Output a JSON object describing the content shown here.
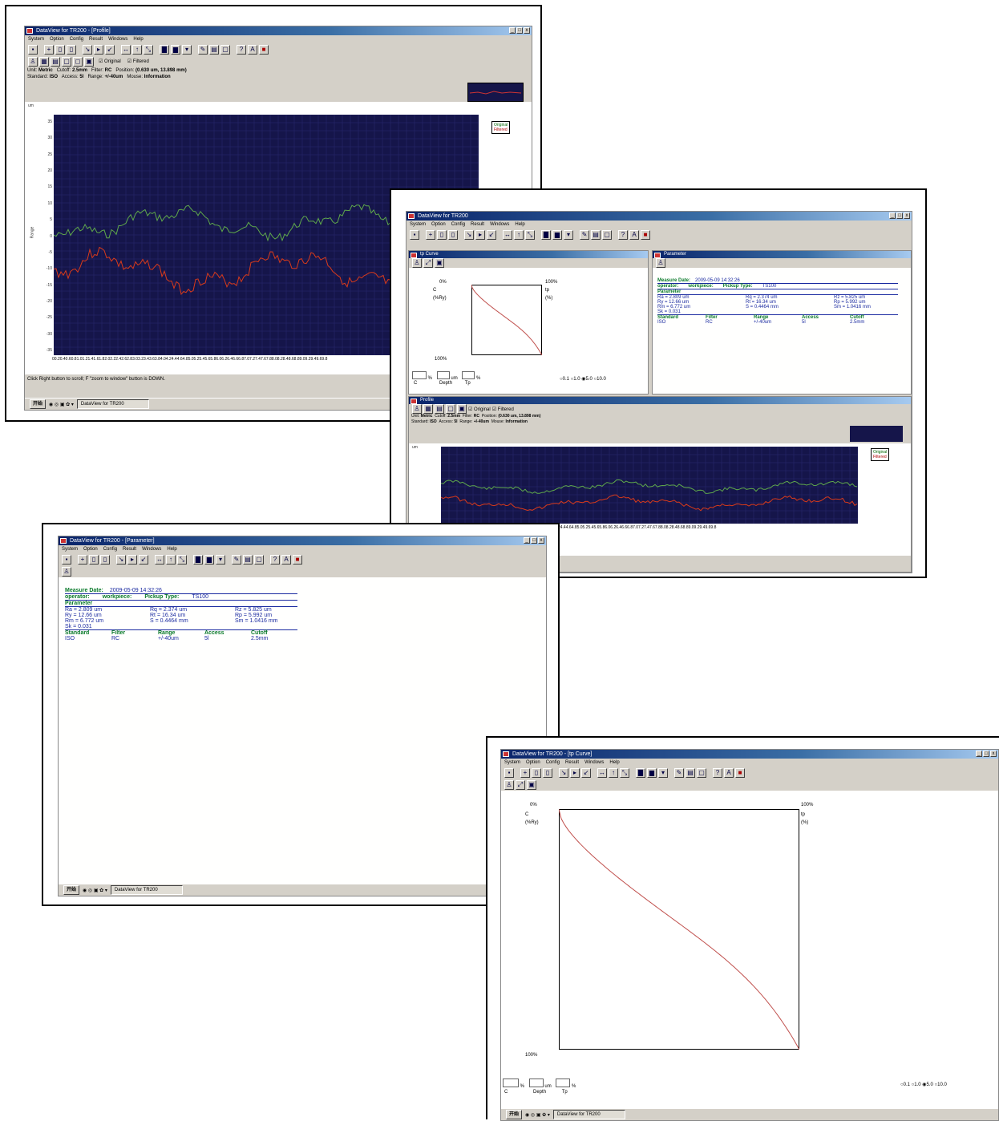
{
  "app_title": "DataView for TR200",
  "windows": {
    "profile": {
      "title": "DataView for TR200 - [Profile]"
    },
    "parameter": {
      "title": "DataView for TR200 - [Parameter]"
    },
    "bearing": {
      "title": "DataView for TR200 - [tp Curve]"
    },
    "tiled": {
      "title": "DataView for TR200",
      "child_tp": "tp Curve",
      "child_param": "Parameter",
      "child_profile": "Profile"
    }
  },
  "menu": [
    "System",
    "Option",
    "Config",
    "Result",
    "Windows",
    "Help"
  ],
  "profile_info": {
    "unit_label": "Unit:",
    "unit": "Metric",
    "cutoff_label": "Cutoff:",
    "cutoff": "2.5mm",
    "filter_label": "Filter:",
    "filter": "RC",
    "position_label": "Position:",
    "position": "(0.630 um, 13.898 mm)",
    "standard_label": "Standard:",
    "standard": "ISO",
    "access_label": "Access:",
    "access": "5l",
    "range_label": "Range:",
    "range": "+/-40um",
    "mouse_label": "Mouse:",
    "mouse": "Information",
    "original_label": "Original",
    "filtered_label": "Filtered"
  },
  "plot": {
    "y_label": "Range",
    "y_unit": "um",
    "y_ticks": [
      "35",
      "30",
      "25",
      "20",
      "15",
      "10",
      "5",
      "0",
      "-5",
      "-10",
      "-15",
      "-20",
      "-25",
      "-30",
      "-35"
    ],
    "x_ticks": "00.20.40.60.81.01.21.41.61.82.02.22.42.62.83.03.23.43.63.84.04.24.44.64.85.05.25.45.65.86.06.26.46.66.87.07.27.47.67.88.08.28.48.68.89.09.29.49.69.8"
  },
  "status_text": "Click Right button to scroll; F \"zoom to window\" button is DOWN.",
  "taskbar": {
    "start": "开始",
    "task": "DataView for TR200"
  },
  "parameter": {
    "measure_date_label": "Measure Date:",
    "measure_date": "2009-05-09  14:32:26",
    "operator_label": "operator:",
    "operator": "workpiece:",
    "pickup_label": "Pickup Type:",
    "pickup": "TS100",
    "section": "Parameter",
    "values": [
      [
        "Ra = 2.809 um",
        "Rq = 2.374 um",
        "Rz = 5.825 um"
      ],
      [
        "Ry = 12.66 um",
        "Rt = 16.34 um",
        "Rp = 5.992 um"
      ],
      [
        "Rm = 6.772 um",
        "S = 0.4464 mm",
        "Sm = 1.0416 mm"
      ],
      [
        "Sk = 0.031",
        "",
        ""
      ]
    ],
    "footer_headers": [
      "Standard",
      "Filter",
      "Range",
      "Access",
      "Cutoff"
    ],
    "footer_values": [
      "ISO",
      "RC",
      "+/-40um",
      "5l",
      "2.5mm"
    ]
  },
  "bearing": {
    "top_left": "0%",
    "top_right": "100%",
    "c_label": "C",
    "c_unit": "(%Ry)",
    "tp_label": "tp",
    "tp_unit": "(%)",
    "bottom_left": "100%",
    "depth_label": "Depth",
    "tp_input_label": "Tp",
    "c_input_label": "C",
    "um": "um",
    "pct": "%",
    "radio_opts": [
      "0.1",
      "1.0",
      "5.0",
      "10.0"
    ]
  }
}
